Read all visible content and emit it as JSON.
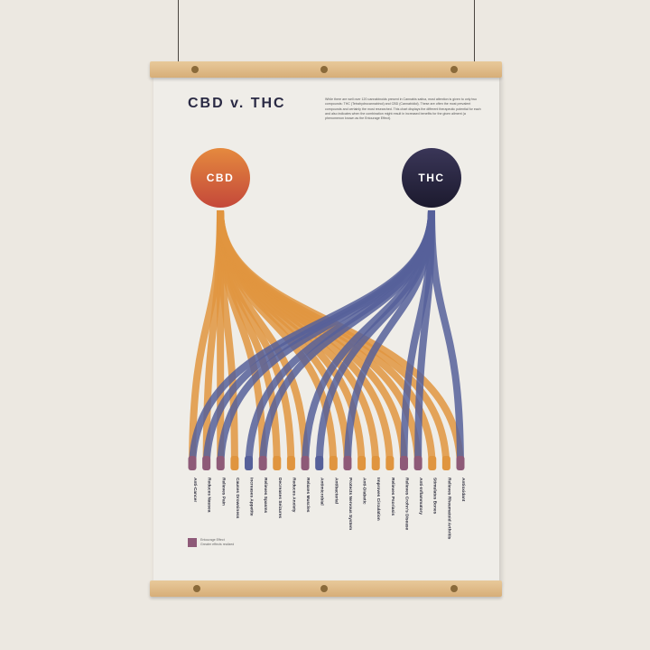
{
  "poster": {
    "title": "CBD v. THC",
    "intro": "While there are well over 120 cannabinoids present in Cannabis sativa, most attention is given to only two compounds: THC (Tetrahydrocannabinol) and CBD (Cannabidiol). These are often the most prevalent compounds and certainly the most researched. This chart displays the different therapeutic potential for each and also indicates when the combination might result in increased benefits for the given ailment (a phenomenon known as the Entourage Effect).",
    "cbd_label": "CBD",
    "thc_label": "THC",
    "legend": {
      "line1": "Entourage Effect",
      "line2": "Greater effects realized"
    },
    "colors": {
      "cbd": "#e0953f",
      "thc": "#56609a",
      "both": "#8e5a78",
      "cbd_circle": "#c4483a",
      "thc_circle": "#1c1a2e"
    }
  },
  "effects": [
    {
      "label": "Anti-Cancer",
      "source": "both"
    },
    {
      "label": "Reduces Nausea",
      "source": "both"
    },
    {
      "label": "Relieves Pain",
      "source": "both"
    },
    {
      "label": "Causes Drowsiness",
      "source": "cbd"
    },
    {
      "label": "Increases Appetite",
      "source": "thc"
    },
    {
      "label": "Relieves Spasms",
      "source": "both"
    },
    {
      "label": "Decreases Seizures",
      "source": "cbd"
    },
    {
      "label": "Reduces Anxiety",
      "source": "cbd"
    },
    {
      "label": "Relaxes Muscles",
      "source": "both"
    },
    {
      "label": "Antimicrobial",
      "source": "thc"
    },
    {
      "label": "Antibacterial",
      "source": "cbd"
    },
    {
      "label": "Protects Nervous System",
      "source": "both"
    },
    {
      "label": "Anti-Diabetic",
      "source": "cbd"
    },
    {
      "label": "Improves Circulation",
      "source": "cbd"
    },
    {
      "label": "Relieves Psoriasis",
      "source": "cbd"
    },
    {
      "label": "Relieves Crohn's Disease",
      "source": "both"
    },
    {
      "label": "Anti-Inflammatory",
      "source": "both"
    },
    {
      "label": "Stimulates Bones",
      "source": "cbd"
    },
    {
      "label": "Relieves Rheumatoid Arthritis",
      "source": "cbd"
    },
    {
      "label": "Antioxidant",
      "source": "both"
    }
  ]
}
